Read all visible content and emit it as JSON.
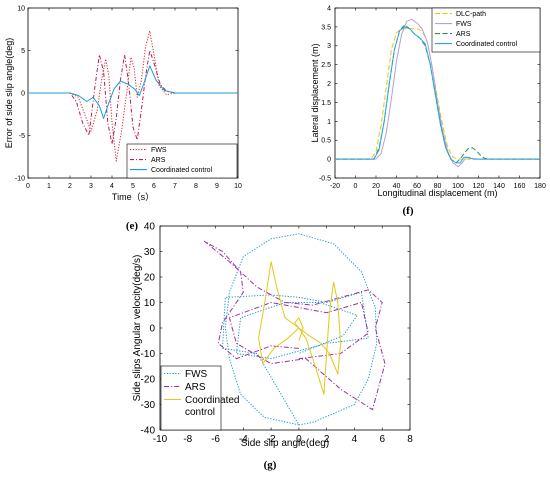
{
  "chart_data": [
    {
      "id": "e",
      "panel_label": "(e)",
      "type": "line",
      "xlabel": "Time（s）",
      "ylabel": "Error of side slip angle(deg)",
      "xlim": [
        0,
        10
      ],
      "ylim": [
        -10,
        10
      ],
      "xticks": [
        0,
        1,
        2,
        3,
        4,
        5,
        6,
        7,
        8,
        9,
        10
      ],
      "yticks": [
        -10,
        -5,
        0,
        5,
        10
      ],
      "grid": false,
      "legend_position": "bottom-right",
      "series": [
        {
          "name": "FWS",
          "color": "#d62728",
          "dash": "1.2,1.6",
          "x": [
            0,
            2.0,
            2.4,
            2.7,
            3.0,
            3.3,
            3.5,
            3.7,
            3.85,
            4.0,
            4.2,
            4.45,
            4.7,
            4.9,
            5.05,
            5.2,
            5.4,
            5.6,
            5.8,
            6.0,
            6.25,
            6.6,
            7.0,
            10
          ],
          "y": [
            0,
            0,
            -0.5,
            -2.5,
            -4.5,
            -2.0,
            1.5,
            4.0,
            2.0,
            -3.5,
            -8.0,
            -4.5,
            0.0,
            4.2,
            3.0,
            -0.5,
            1.5,
            5.5,
            7.3,
            4.5,
            0.8,
            -0.2,
            0,
            0
          ]
        },
        {
          "name": "ARS",
          "color": "#c2185b",
          "dash": "4,2,1,2",
          "x": [
            0,
            2.0,
            2.3,
            2.6,
            2.9,
            3.2,
            3.4,
            3.6,
            3.8,
            4.0,
            4.2,
            4.4,
            4.6,
            4.8,
            5.0,
            5.2,
            5.4,
            5.6,
            5.8,
            6.0,
            6.3,
            6.6,
            7.0,
            10
          ],
          "y": [
            0,
            0,
            -1.0,
            -3.5,
            -5.0,
            1.0,
            4.5,
            2.5,
            -3.5,
            -6.0,
            -3.0,
            1.5,
            4.5,
            1.0,
            -4.0,
            -5.5,
            -2.0,
            2.0,
            5.0,
            3.5,
            1.0,
            0.2,
            0,
            0
          ]
        },
        {
          "name": "Coordinated control",
          "color": "#1f9bd7",
          "dash": "",
          "x": [
            0,
            2.0,
            2.4,
            2.8,
            3.1,
            3.4,
            3.6,
            3.8,
            4.1,
            4.4,
            4.8,
            5.1,
            5.3,
            5.5,
            5.8,
            6.1,
            6.5,
            7.0,
            10
          ],
          "y": [
            0,
            0,
            -0.3,
            -1.0,
            -0.5,
            -1.5,
            -3.0,
            -1.5,
            0.5,
            1.4,
            1.0,
            0.4,
            -0.3,
            1.0,
            3.2,
            1.5,
            0.3,
            0,
            0
          ]
        }
      ]
    },
    {
      "id": "f",
      "panel_label": "(f)",
      "type": "line",
      "xlabel": "Longitudinal displacement (m)",
      "ylabel": "Lateral displacement (m)",
      "xlim": [
        -20,
        180
      ],
      "ylim": [
        -0.5,
        4
      ],
      "xticks": [
        -20,
        0,
        20,
        40,
        60,
        80,
        100,
        120,
        140,
        160,
        180
      ],
      "yticks": [
        -0.5,
        0,
        0.5,
        1,
        1.5,
        2,
        2.5,
        3,
        3.5,
        4
      ],
      "grid": false,
      "legend_position": "top-right",
      "series": [
        {
          "name": "DLC-path",
          "color": "#e6c619",
          "dash": "5,2.5",
          "x": [
            -20,
            15,
            20,
            25,
            30,
            35,
            40,
            45,
            50,
            55,
            60,
            65,
            70,
            75,
            80,
            85,
            90,
            95,
            100,
            180
          ],
          "y": [
            0,
            0,
            0.2,
            0.9,
            1.9,
            2.9,
            3.35,
            3.45,
            3.45,
            3.45,
            3.45,
            3.4,
            3.1,
            2.4,
            1.6,
            0.9,
            0.3,
            0.05,
            0,
            0
          ]
        },
        {
          "name": "FWS",
          "color": "#b4a0d8",
          "dash": "",
          "x": [
            -20,
            20,
            25,
            30,
            35,
            40,
            45,
            50,
            55,
            60,
            65,
            70,
            75,
            80,
            85,
            90,
            95,
            100,
            104,
            108,
            112,
            120,
            130,
            180
          ],
          "y": [
            0,
            0,
            0.15,
            0.7,
            1.6,
            2.6,
            3.3,
            3.65,
            3.7,
            3.6,
            3.45,
            3.1,
            2.4,
            1.5,
            0.75,
            0.2,
            -0.1,
            -0.2,
            -0.1,
            0.05,
            0.02,
            0,
            0,
            0
          ]
        },
        {
          "name": "ARS",
          "color": "#2e8b57",
          "dash": "5,2.5",
          "x": [
            -20,
            18,
            23,
            28,
            33,
            38,
            43,
            48,
            53,
            58,
            63,
            68,
            73,
            78,
            83,
            88,
            93,
            98,
            102,
            106,
            110,
            114,
            118,
            122,
            126,
            132,
            180
          ],
          "y": [
            0,
            0,
            0.3,
            1.0,
            2.0,
            2.9,
            3.4,
            3.55,
            3.45,
            3.3,
            3.2,
            3.0,
            2.5,
            1.7,
            0.9,
            0.3,
            0.0,
            -0.1,
            0.0,
            0.15,
            0.28,
            0.3,
            0.22,
            0.1,
            0.02,
            0,
            0
          ]
        },
        {
          "name": "Coordinated control",
          "color": "#29a8e0",
          "dash": "",
          "x": [
            -20,
            18,
            23,
            28,
            33,
            38,
            43,
            48,
            53,
            58,
            63,
            68,
            73,
            78,
            83,
            88,
            93,
            98,
            102,
            106,
            110,
            115,
            180
          ],
          "y": [
            0,
            0,
            0.25,
            1.0,
            2.0,
            2.9,
            3.4,
            3.5,
            3.45,
            3.3,
            3.2,
            3.05,
            2.5,
            1.7,
            0.9,
            0.3,
            0.0,
            -0.1,
            -0.1,
            0.05,
            0.05,
            0,
            0
          ]
        }
      ]
    },
    {
      "id": "g",
      "panel_label": "(g)",
      "type": "line",
      "xlabel": "Side slip angle(deg)",
      "ylabel": "Side slips Angular velocity(deg/s)",
      "xlim": [
        -10,
        8
      ],
      "ylim": [
        -40,
        40
      ],
      "xticks": [
        -10,
        -8,
        -6,
        -4,
        -2,
        0,
        2,
        4,
        6,
        8
      ],
      "yticks": [
        -40,
        -30,
        -20,
        -10,
        0,
        10,
        20,
        30,
        40
      ],
      "grid": false,
      "legend_position": "bottom-left",
      "series": [
        {
          "name": "FWS",
          "color": "#1f9bd7",
          "dash": "1.3,1.5",
          "x": [
            0,
            -2.5,
            -4.2,
            -5.0,
            -5.3,
            -5.0,
            -4.0,
            -2.0,
            0,
            2.5,
            4.5,
            5.5,
            5.6,
            5.0,
            4.0,
            1.0,
            0,
            -3,
            -5.5,
            -5.3,
            -2,
            0,
            2,
            4.5,
            5.0,
            2,
            -2,
            -4.5,
            -4.2,
            -1,
            1.5,
            4.2,
            3.2,
            0
          ],
          "y": [
            -38,
            -35,
            -26,
            -12,
            0,
            14,
            28,
            35,
            37,
            33,
            22,
            8,
            -6,
            -20,
            -30,
            -37,
            -38,
            -10,
            -8,
            12,
            13,
            12,
            10,
            14,
            -4,
            -6,
            -12,
            -10,
            4,
            10,
            10,
            5,
            -3,
            -10
          ]
        },
        {
          "name": "ARS",
          "color": "#9b30a0",
          "dash": "5,2,1.2,2",
          "x": [
            0,
            -2,
            -4.5,
            -5.8,
            -5.5,
            -4.0,
            -4.2,
            -5.5,
            -6.8,
            -5.0,
            -3.0,
            -1.0,
            1.0,
            3.0,
            5.0,
            6.0,
            5.5,
            6.2,
            5.3,
            3.0,
            0.5,
            -2,
            -4.5,
            -5,
            -2,
            0,
            2,
            4.5,
            5,
            3,
            0
          ],
          "y": [
            -8,
            -7,
            -12,
            -6,
            2,
            14,
            22,
            30,
            34,
            26,
            16,
            10,
            9,
            12,
            15,
            10,
            0,
            -14,
            -32,
            -24,
            -12,
            -14,
            -6,
            4,
            10,
            8,
            6,
            10,
            -2,
            -10,
            -12
          ]
        },
        {
          "name": "Coordinated\ncontrol",
          "color": "#e6c619",
          "dash": "",
          "x": [
            0,
            -0.8,
            -1.8,
            -2.6,
            -2.9,
            -2.4,
            -2.0,
            -1.6,
            -1.0,
            -0.5,
            0,
            0.5,
            1.0,
            1.6,
            2.2,
            2.8,
            3.0,
            2.8,
            2.5,
            2.2,
            1.8,
            1.0,
            0.5,
            0,
            -0.3,
            0,
            0.3,
            0
          ],
          "y": [
            0,
            -4,
            -8,
            -14,
            -4,
            12,
            26,
            16,
            4,
            2,
            0,
            -2,
            -4,
            -6,
            -10,
            -18,
            -6,
            10,
            18,
            6,
            -26,
            -12,
            -4,
            0,
            2,
            4,
            0,
            -5
          ]
        }
      ]
    }
  ]
}
